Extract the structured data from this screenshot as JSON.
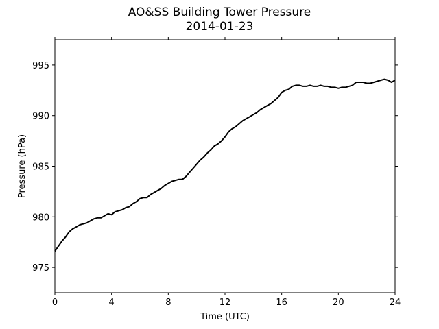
{
  "chart_data": {
    "type": "line",
    "title": "AO&SS Building Tower Pressure",
    "subtitle": "2014-01-23",
    "xlabel": "Time (UTC)",
    "ylabel": "Pressure (hPa)",
    "xlim": [
      0,
      24
    ],
    "ylim": [
      972.5,
      997.5
    ],
    "xticks": [
      0,
      4,
      8,
      12,
      16,
      20,
      24
    ],
    "yticks": [
      975,
      980,
      985,
      990,
      995
    ],
    "grid": false,
    "series": [
      {
        "color": "#000000",
        "points": [
          [
            0.0,
            976.6
          ],
          [
            0.25,
            977.1
          ],
          [
            0.5,
            977.6
          ],
          [
            0.75,
            978.0
          ],
          [
            1.0,
            978.5
          ],
          [
            1.25,
            978.8
          ],
          [
            1.5,
            979.0
          ],
          [
            1.75,
            979.2
          ],
          [
            2.0,
            979.3
          ],
          [
            2.25,
            979.4
          ],
          [
            2.5,
            979.6
          ],
          [
            2.75,
            979.8
          ],
          [
            3.0,
            979.9
          ],
          [
            3.25,
            979.9
          ],
          [
            3.5,
            980.1
          ],
          [
            3.75,
            980.3
          ],
          [
            4.0,
            980.2
          ],
          [
            4.25,
            980.5
          ],
          [
            4.5,
            980.6
          ],
          [
            4.75,
            980.7
          ],
          [
            5.0,
            980.9
          ],
          [
            5.25,
            981.0
          ],
          [
            5.5,
            981.3
          ],
          [
            5.75,
            981.5
          ],
          [
            6.0,
            981.8
          ],
          [
            6.25,
            981.9
          ],
          [
            6.5,
            981.9
          ],
          [
            6.75,
            982.2
          ],
          [
            7.0,
            982.4
          ],
          [
            7.25,
            982.6
          ],
          [
            7.5,
            982.8
          ],
          [
            7.75,
            983.1
          ],
          [
            8.0,
            983.3
          ],
          [
            8.25,
            983.5
          ],
          [
            8.5,
            983.6
          ],
          [
            8.75,
            983.7
          ],
          [
            9.0,
            983.7
          ],
          [
            9.25,
            984.0
          ],
          [
            9.5,
            984.4
          ],
          [
            9.75,
            984.8
          ],
          [
            10.0,
            985.2
          ],
          [
            10.25,
            985.6
          ],
          [
            10.5,
            985.9
          ],
          [
            10.75,
            986.3
          ],
          [
            11.0,
            986.6
          ],
          [
            11.25,
            987.0
          ],
          [
            11.5,
            987.2
          ],
          [
            11.75,
            987.5
          ],
          [
            12.0,
            987.9
          ],
          [
            12.25,
            988.4
          ],
          [
            12.5,
            988.7
          ],
          [
            12.75,
            988.9
          ],
          [
            13.0,
            989.2
          ],
          [
            13.25,
            989.5
          ],
          [
            13.5,
            989.7
          ],
          [
            13.75,
            989.9
          ],
          [
            14.0,
            990.1
          ],
          [
            14.25,
            990.3
          ],
          [
            14.5,
            990.6
          ],
          [
            14.75,
            990.8
          ],
          [
            15.0,
            991.0
          ],
          [
            15.25,
            991.2
          ],
          [
            15.5,
            991.5
          ],
          [
            15.75,
            991.8
          ],
          [
            16.0,
            992.3
          ],
          [
            16.25,
            992.5
          ],
          [
            16.5,
            992.6
          ],
          [
            16.75,
            992.9
          ],
          [
            17.0,
            993.0
          ],
          [
            17.25,
            993.0
          ],
          [
            17.5,
            992.9
          ],
          [
            17.75,
            992.9
          ],
          [
            18.0,
            993.0
          ],
          [
            18.25,
            992.9
          ],
          [
            18.5,
            992.9
          ],
          [
            18.75,
            993.0
          ],
          [
            19.0,
            992.9
          ],
          [
            19.25,
            992.9
          ],
          [
            19.5,
            992.8
          ],
          [
            19.75,
            992.8
          ],
          [
            20.0,
            992.7
          ],
          [
            20.25,
            992.8
          ],
          [
            20.5,
            992.8
          ],
          [
            20.75,
            992.9
          ],
          [
            21.0,
            993.0
          ],
          [
            21.25,
            993.3
          ],
          [
            21.5,
            993.3
          ],
          [
            21.75,
            993.3
          ],
          [
            22.0,
            993.2
          ],
          [
            22.25,
            993.2
          ],
          [
            22.5,
            993.3
          ],
          [
            22.75,
            993.4
          ],
          [
            23.0,
            993.5
          ],
          [
            23.25,
            993.6
          ],
          [
            23.5,
            993.5
          ],
          [
            23.75,
            993.3
          ],
          [
            24.0,
            993.5
          ]
        ]
      }
    ]
  }
}
